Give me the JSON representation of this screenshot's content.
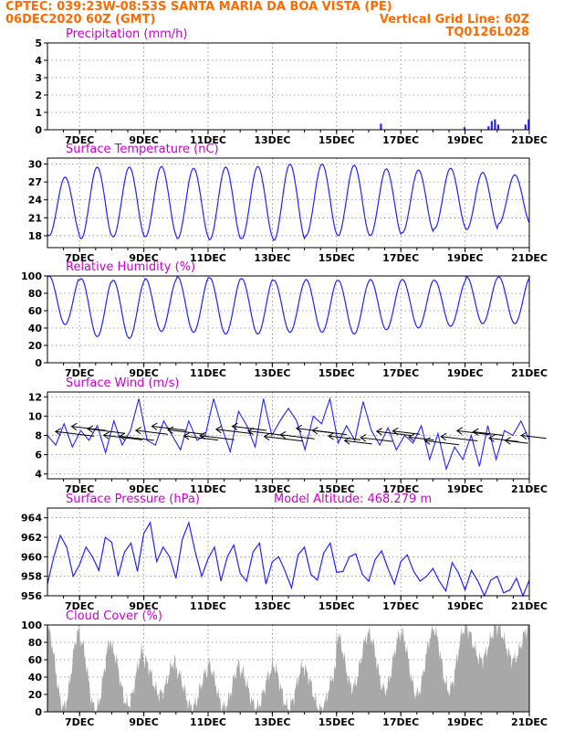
{
  "header": {
    "left_line1": "CPTEC:   039:23W-08:53S   SANTA MARIA DA BOA VISTA (PE)",
    "left_line2": "06DEC2020 60Z (GMT)",
    "right_line2": "Vertical Grid Line: 60Z",
    "right_line3": "TQ0126L028"
  },
  "colors": {
    "header": "#ff6a00",
    "title": "#cc00cc",
    "series": "#2222ff",
    "cloud": "#a8a8a8",
    "grid": "#888888"
  },
  "x_axis": {
    "start_day": 6,
    "end_day": 21,
    "tick_days": [
      7,
      9,
      11,
      13,
      15,
      17,
      19,
      21
    ],
    "tick_labels": [
      "7DEC",
      "9DEC",
      "11DEC",
      "13DEC",
      "15DEC",
      "17DEC",
      "19DEC",
      "21DEC"
    ]
  },
  "chart_data": [
    {
      "type": "bar",
      "title": "Precipitation (mm/h)",
      "ylim": [
        0,
        5
      ],
      "yticks": [
        0,
        1,
        2,
        3,
        4,
        5
      ],
      "x": [
        16.35,
        18.95,
        19.7,
        19.8,
        19.9,
        20.0,
        20.85,
        20.95
      ],
      "values": [
        0.35,
        0.15,
        0.2,
        0.5,
        0.6,
        0.3,
        0.3,
        0.6
      ]
    },
    {
      "type": "line",
      "title": "Surface Temperature (nC)",
      "ylim": [
        16,
        31
      ],
      "yticks": [
        18,
        21,
        24,
        27,
        30
      ],
      "daily_max": [
        27.8,
        29.5,
        29.5,
        29.6,
        29.3,
        29.5,
        29.6,
        30.0,
        30.0,
        29.8,
        29.2,
        29.0,
        29.3,
        28.6,
        28.2
      ],
      "daily_min": [
        18.0,
        17.5,
        17.8,
        17.8,
        17.5,
        17.3,
        17.5,
        17.2,
        18.0,
        18.0,
        18.0,
        18.5,
        19.2,
        19.0,
        20.0
      ]
    },
    {
      "type": "line",
      "title": "Relative Humidity (%)",
      "ylim": [
        0,
        100
      ],
      "yticks": [
        0,
        20,
        40,
        60,
        80,
        100
      ],
      "daily_max": [
        100,
        97,
        95,
        97,
        99,
        98,
        97,
        95,
        96,
        95,
        96,
        96,
        95,
        99,
        99
      ],
      "daily_min": [
        44,
        30,
        28,
        36,
        35,
        33,
        33,
        35,
        35,
        33,
        38,
        40,
        42,
        45,
        45
      ]
    },
    {
      "type": "line",
      "title": "Surface Wind (m/s)",
      "ylim": [
        3.5,
        12.5
      ],
      "yticks": [
        4,
        6,
        8,
        10,
        12
      ],
      "speed": [
        8.0,
        7.0,
        9.2,
        6.8,
        8.5,
        7.5,
        9.0,
        6.2,
        9.5,
        7.0,
        8.5,
        11.8,
        7.5,
        7.0,
        9.5,
        8.0,
        6.5,
        9.5,
        7.5,
        8.0,
        11.8,
        8.8,
        6.3,
        10.5,
        9.0,
        6.8,
        11.8,
        8.0,
        9.5,
        10.8,
        9.5,
        6.5,
        10.0,
        9.2,
        11.8,
        7.2,
        9.0,
        7.5,
        11.5,
        8.5,
        7.0,
        8.8,
        6.5,
        8.0,
        7.2,
        9.0,
        5.5,
        8.2,
        4.5,
        6.8,
        5.5,
        8.0,
        4.8,
        9.0,
        5.5,
        8.5,
        8.0,
        9.5,
        7.5
      ],
      "arrow_length": [
        0.85,
        0.75,
        0.8,
        0.85,
        0.75,
        0.7,
        0.75,
        0.8,
        0.75,
        0.75,
        0.8,
        0.75,
        0.8,
        0.85,
        0.75,
        0.8,
        0.75,
        0.7,
        0.6,
        0.7,
        0.75,
        0.6,
        0.55,
        0.75,
        0.8,
        0.7,
        0.65,
        0.65,
        0.5,
        0.55
      ]
    },
    {
      "type": "line",
      "title": "Surface Pressure (hPa)",
      "ylim": [
        956,
        965
      ],
      "yticks": [
        956,
        958,
        960,
        962,
        964
      ],
      "annotation": "Model Altitude: 468.279 m",
      "values": [
        957.2,
        960,
        962.2,
        961,
        958,
        959.2,
        961,
        960,
        958.6,
        962,
        961.5,
        958,
        960.5,
        961.4,
        958.5,
        962.4,
        963.5,
        959.5,
        961,
        960,
        957.8,
        961.8,
        963.5,
        960.5,
        958,
        959.8,
        961,
        957.5,
        960,
        961.2,
        958.3,
        957.5,
        960.5,
        961.4,
        957.2,
        959.5,
        960,
        958.5,
        956.8,
        960.2,
        961,
        958.2,
        957.6,
        960.4,
        961.4,
        958.4,
        958.5,
        960,
        960.3,
        958.2,
        957.5,
        959.7,
        960.6,
        958.8,
        957.2,
        959.5,
        960.2,
        958.5,
        957.5,
        958,
        958.8,
        957.5,
        956.5,
        959.4,
        958.3,
        956.6,
        958.6,
        957.5,
        956,
        957.6,
        958,
        956.3,
        956.6,
        957.8,
        956,
        957.6
      ]
    },
    {
      "type": "area",
      "title": "Cloud Cover (%)",
      "ylim": [
        0,
        100
      ],
      "yticks": [
        0,
        20,
        40,
        60,
        80,
        100
      ],
      "day_peak": [
        95,
        85,
        72,
        60,
        48,
        55,
        48,
        55,
        48,
        90,
        90,
        92,
        97,
        98,
        98
      ],
      "day_trough": [
        5,
        2,
        8,
        20,
        5,
        5,
        5,
        5,
        2,
        28,
        25,
        20,
        25,
        60,
        60
      ]
    }
  ]
}
